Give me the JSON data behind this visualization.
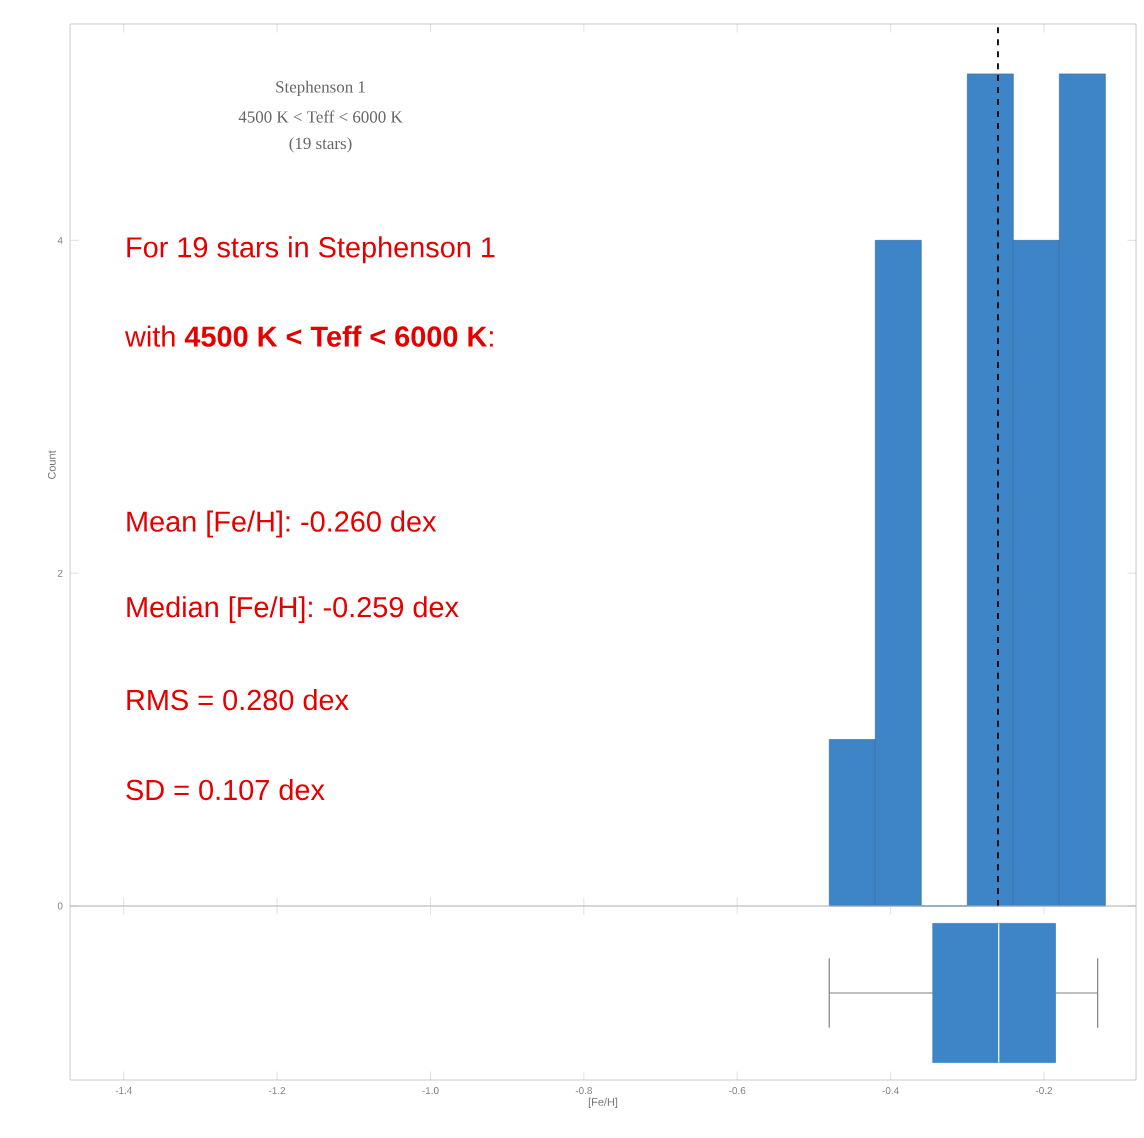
{
  "chart_data": [
    {
      "type": "histogram",
      "bins": [
        -0.48,
        -0.42,
        -0.36,
        -0.3,
        -0.24,
        -0.18,
        -0.12
      ],
      "values": [
        1,
        4,
        0,
        5,
        4,
        5
      ],
      "color": "#3d85c6",
      "xlim": [
        -1.47,
        -0.08
      ],
      "xticks": [
        -1.4,
        -1.2,
        {
          "value": -1.0,
          "label": null
        },
        -0.8,
        -0.6,
        -0.4,
        -0.2
      ],
      "ylim": [
        0,
        5.3
      ],
      "yticks": [
        0,
        2,
        4
      ],
      "ylabel": "Count",
      "tick_labels": "y",
      "ref_lines": [
        {
          "axis": "x",
          "value": -0.26,
          "color": "#000000",
          "line_style": "dashed"
        }
      ],
      "annotations": [
        "Stephenson 1",
        "4500 K < Teff < 6000 K",
        "(19 stars)",
        "For 19 stars in Stephenson 1",
        "with **4500 K < Teff < 6000 K**:",
        "Mean [Fe/H]: -0.260 dex",
        "Median [Fe/H]: -0.259 dex",
        "RMS = 0.280 dex",
        "SD = 0.107 dex"
      ]
    },
    {
      "type": "box",
      "orientation": "horizontal",
      "categories": [
        null
      ],
      "color": "#3d85c6",
      "xlim": [
        -1.47,
        -0.08
      ],
      "xticks": [
        -1.4,
        -1.2,
        {
          "value": -1.0,
          "label": "-1.0"
        },
        -0.8,
        -0.6,
        -0.4,
        -0.2
      ],
      "xlabel": "[Fe/H]",
      "tick_labels": "x",
      "boxes": [
        {
          "low": -0.48,
          "q1": -0.345,
          "median": -0.259,
          "q3": -0.185,
          "high": -0.13
        }
      ]
    }
  ]
}
